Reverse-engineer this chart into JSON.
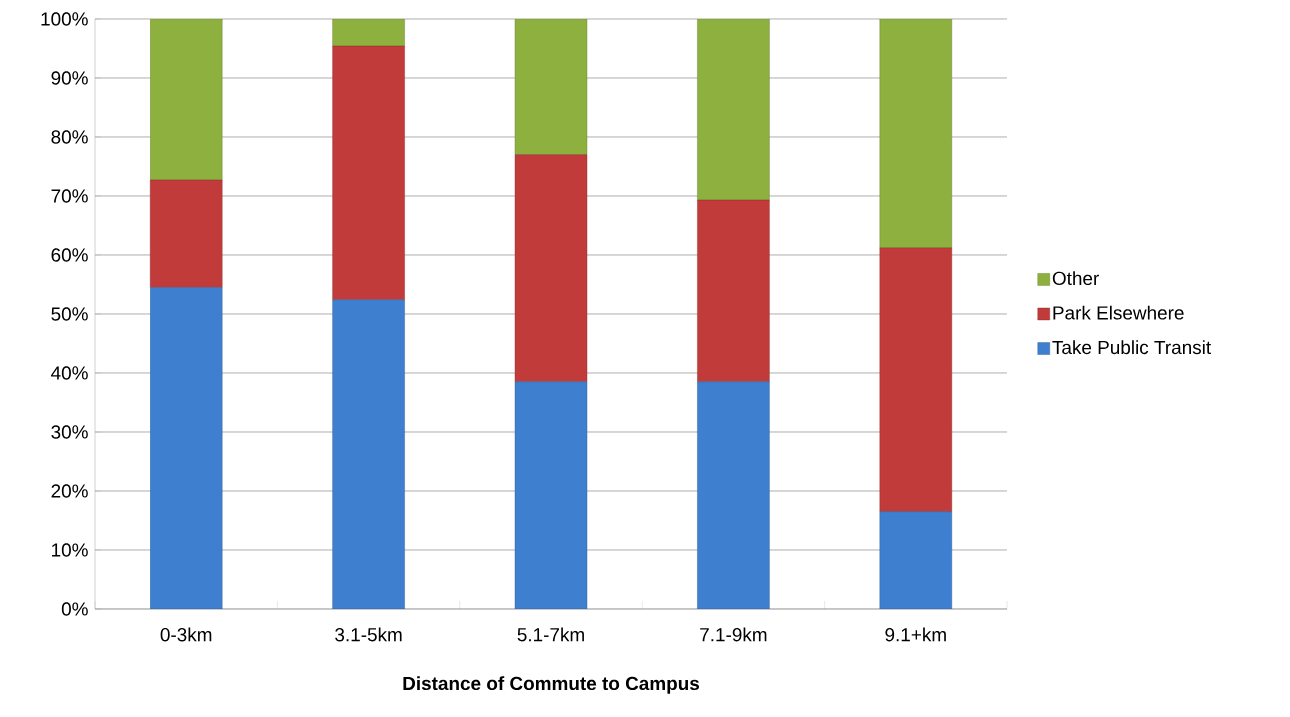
{
  "chart_data": {
    "type": "bar",
    "stacked": true,
    "xlabel": "Distance of Commute to Campus",
    "categories": [
      "0-3km",
      "3.1-5km",
      "5.1-7km",
      "7.1-9km",
      "9.1+km"
    ],
    "series": [
      {
        "name": "Take Public Transit",
        "color": "#3f7fcf",
        "values": [
          54.5,
          52.4,
          38.5,
          38.5,
          16.5
        ]
      },
      {
        "name": "Park Elsewhere",
        "color": "#c23b3b",
        "values": [
          18.2,
          43.0,
          38.5,
          30.8,
          44.7
        ]
      },
      {
        "name": "Other",
        "color": "#8db03f",
        "values": [
          27.3,
          4.6,
          23.0,
          30.7,
          38.8
        ]
      }
    ],
    "ylim": [
      0,
      100
    ],
    "yticks": [
      {
        "value": 0,
        "label": "0%"
      },
      {
        "value": 10,
        "label": "10%"
      },
      {
        "value": 20,
        "label": "20%"
      },
      {
        "value": 30,
        "label": "30%"
      },
      {
        "value": 40,
        "label": "40%"
      },
      {
        "value": 50,
        "label": "50%"
      },
      {
        "value": 60,
        "label": "60%"
      },
      {
        "value": 70,
        "label": "70%"
      },
      {
        "value": 80,
        "label": "80%"
      },
      {
        "value": 90,
        "label": "90%"
      },
      {
        "value": 100,
        "label": "100%"
      }
    ],
    "grid": "y",
    "legend": "right"
  }
}
